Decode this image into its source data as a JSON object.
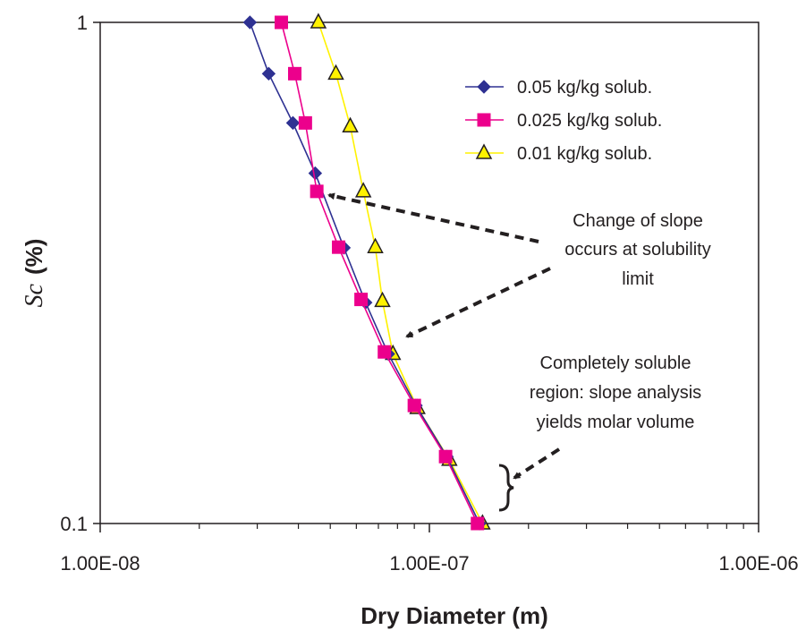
{
  "chart_data": {
    "type": "line",
    "xlabel": "Dry Diameter (m)",
    "ylabel": {
      "symbol": "Sc",
      "unit": "(%)"
    },
    "x_scale": "log",
    "y_scale": "log",
    "xlim": [
      1e-08,
      1e-06
    ],
    "ylim": [
      0.1,
      1
    ],
    "x_ticks": [
      {
        "value": 1e-08,
        "label": "1.00E-08"
      },
      {
        "value": 1e-07,
        "label": "1.00E-07"
      },
      {
        "value": 1e-06,
        "label": "1.00E-06"
      }
    ],
    "y_ticks": [
      {
        "value": 0.1,
        "label": "0.1"
      },
      {
        "value": 1,
        "label": "1"
      }
    ],
    "grid": false,
    "legend_position": "top-right",
    "series": [
      {
        "name": "0.05 kg/kg solub.",
        "color": "#2e3192",
        "marker": "diamond",
        "marker_color": "#2e3192",
        "points": [
          [
            2.85e-08,
            1.0
          ],
          [
            3.25e-08,
            0.79
          ],
          [
            3.85e-08,
            0.63
          ],
          [
            4.5e-08,
            0.5
          ],
          [
            5.5e-08,
            0.355
          ],
          [
            6.4e-08,
            0.276
          ],
          [
            7.5e-08,
            0.218
          ],
          [
            9.1e-08,
            0.172
          ],
          [
            1.13e-07,
            0.136
          ],
          [
            1.42e-07,
            0.1
          ]
        ]
      },
      {
        "name": "0.025 kg/kg solub.",
        "color": "#ec008c",
        "marker": "square",
        "marker_color": "#ec008c",
        "points": [
          [
            3.55e-08,
            1.0
          ],
          [
            3.9e-08,
            0.79
          ],
          [
            4.2e-08,
            0.63
          ],
          [
            4.55e-08,
            0.46
          ],
          [
            5.3e-08,
            0.356
          ],
          [
            6.2e-08,
            0.28
          ],
          [
            7.3e-08,
            0.22
          ],
          [
            9e-08,
            0.172
          ],
          [
            1.12e-07,
            0.136
          ],
          [
            1.4e-07,
            0.1
          ]
        ]
      },
      {
        "name": "0.01 kg/kg solub.",
        "color": "#fff200",
        "marker": "triangle",
        "marker_color": "#fff200",
        "points": [
          [
            4.6e-08,
            1.0
          ],
          [
            5.2e-08,
            0.79
          ],
          [
            5.75e-08,
            0.62
          ],
          [
            6.3e-08,
            0.46
          ],
          [
            6.85e-08,
            0.356
          ],
          [
            7.2e-08,
            0.278
          ],
          [
            7.75e-08,
            0.218
          ],
          [
            9.2e-08,
            0.17
          ],
          [
            1.15e-07,
            0.134
          ],
          [
            1.45e-07,
            0.1
          ]
        ]
      }
    ],
    "annotations": [
      {
        "lines": [
          "Change of slope",
          "occurs at solubility",
          "limit"
        ]
      },
      {
        "lines": [
          "Completely soluble",
          "region: slope analysis",
          "yields molar volume"
        ]
      }
    ]
  }
}
